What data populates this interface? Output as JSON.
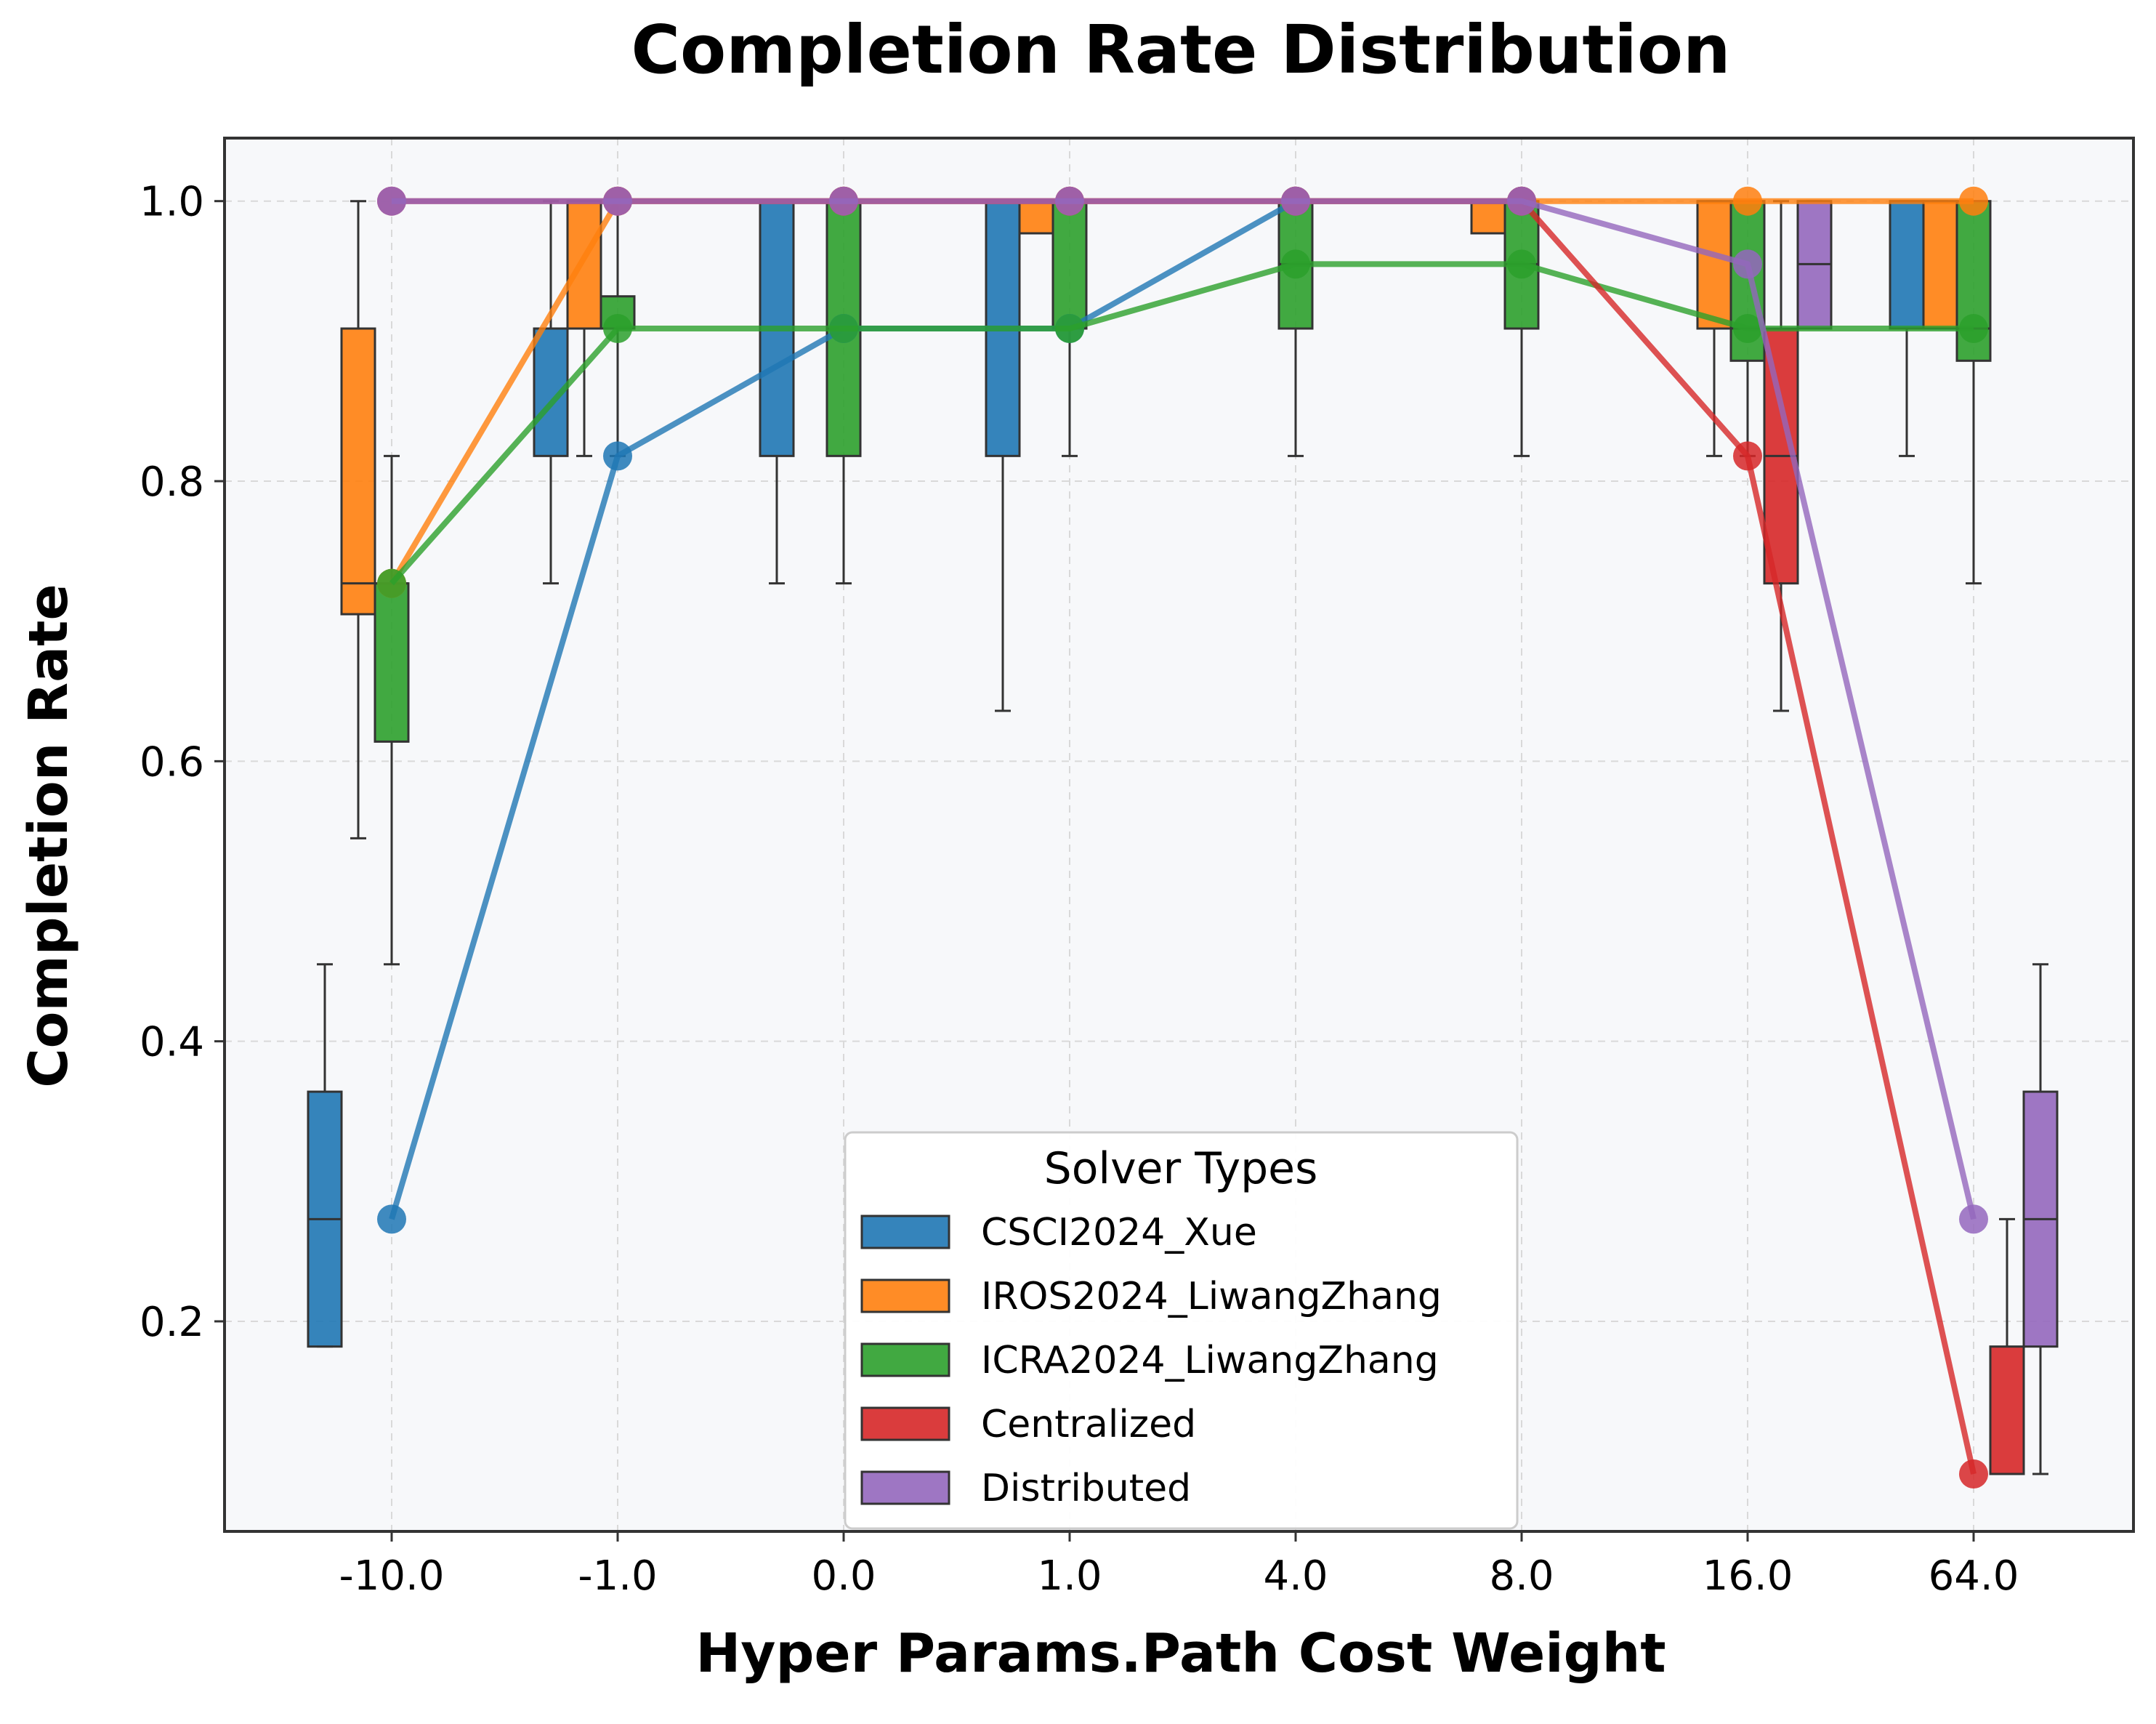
{
  "chart_data": {
    "type": "box",
    "title": "Completion Rate Distribution",
    "xlabel": "Hyper Params.Path Cost Weight",
    "ylabel": "Completion Rate",
    "categories": [
      "-10.0",
      "-1.0",
      "0.0",
      "1.0",
      "4.0",
      "8.0",
      "16.0",
      "64.0"
    ],
    "ylim": [
      0.05,
      1.045
    ],
    "yticks": [
      0.2,
      0.4,
      0.6,
      0.8,
      1.0
    ],
    "ytick_labels": [
      "0.2",
      "0.4",
      "0.6",
      "0.8",
      "1.0"
    ],
    "grid": true,
    "legend": {
      "title": "Solver Types",
      "placement": "lower center"
    },
    "series": [
      {
        "name": "CSCI2024_Xue",
        "color": "#1f77b4",
        "boxes": [
          {
            "whisker_low": 0.182,
            "q1": 0.182,
            "median": 0.273,
            "q3": 0.364,
            "whisker_high": 0.455
          },
          {
            "whisker_low": 0.727,
            "q1": 0.818,
            "median": 0.909,
            "q3": 0.909,
            "whisker_high": 1.0
          },
          {
            "whisker_low": 0.727,
            "q1": 0.818,
            "median": 1.0,
            "q3": 1.0,
            "whisker_high": 1.0
          },
          {
            "whisker_low": 0.636,
            "q1": 0.818,
            "median": 1.0,
            "q3": 1.0,
            "whisker_high": 1.0
          },
          null,
          null,
          null,
          {
            "whisker_low": 0.818,
            "q1": 0.909,
            "median": 1.0,
            "q3": 1.0,
            "whisker_high": 1.0
          }
        ],
        "line_values": [
          0.273,
          0.818,
          0.909,
          0.909,
          1.0,
          1.0,
          null,
          null
        ]
      },
      {
        "name": "IROS2024_LiwangZhang",
        "color": "#ff7f0e",
        "boxes": [
          {
            "whisker_low": 0.545,
            "q1": 0.705,
            "median": 0.727,
            "q3": 0.909,
            "whisker_high": 1.0
          },
          {
            "whisker_low": 0.818,
            "q1": 0.909,
            "median": 1.0,
            "q3": 1.0,
            "whisker_high": 1.0
          },
          null,
          {
            "whisker_low": 0.977,
            "q1": 0.977,
            "median": 1.0,
            "q3": 1.0,
            "whisker_high": 1.0
          },
          null,
          {
            "whisker_low": 0.977,
            "q1": 0.977,
            "median": 1.0,
            "q3": 1.0,
            "whisker_high": 1.0
          },
          {
            "whisker_low": 0.818,
            "q1": 0.909,
            "median": 1.0,
            "q3": 1.0,
            "whisker_high": 1.0
          },
          {
            "whisker_low": 0.909,
            "q1": 0.909,
            "median": 1.0,
            "q3": 1.0,
            "whisker_high": 1.0
          }
        ],
        "line_values": [
          0.727,
          1.0,
          1.0,
          1.0,
          1.0,
          1.0,
          1.0,
          1.0
        ]
      },
      {
        "name": "ICRA2024_LiwangZhang",
        "color": "#2ca02c",
        "boxes": [
          {
            "whisker_low": 0.455,
            "q1": 0.614,
            "median": 0.727,
            "q3": 0.727,
            "whisker_high": 0.818
          },
          {
            "whisker_low": 0.818,
            "q1": 0.909,
            "median": 0.909,
            "q3": 0.932,
            "whisker_high": 1.0
          },
          {
            "whisker_low": 0.727,
            "q1": 0.818,
            "median": 0.909,
            "q3": 1.0,
            "whisker_high": 1.0
          },
          {
            "whisker_low": 0.818,
            "q1": 0.909,
            "median": 0.909,
            "q3": 1.0,
            "whisker_high": 1.0
          },
          {
            "whisker_low": 0.818,
            "q1": 0.909,
            "median": 0.955,
            "q3": 1.0,
            "whisker_high": 1.0
          },
          {
            "whisker_low": 0.818,
            "q1": 0.909,
            "median": 0.955,
            "q3": 1.0,
            "whisker_high": 1.0
          },
          {
            "whisker_low": 0.818,
            "q1": 0.886,
            "median": 0.909,
            "q3": 1.0,
            "whisker_high": 1.0
          },
          {
            "whisker_low": 0.727,
            "q1": 0.886,
            "median": 0.909,
            "q3": 1.0,
            "whisker_high": 1.0
          }
        ],
        "line_values": [
          0.727,
          0.909,
          0.909,
          0.909,
          0.955,
          0.955,
          0.909,
          0.909
        ]
      },
      {
        "name": "Centralized",
        "color": "#d62728",
        "boxes": [
          null,
          null,
          null,
          null,
          null,
          null,
          {
            "whisker_low": 0.636,
            "q1": 0.727,
            "median": 0.818,
            "q3": 0.909,
            "whisker_high": 1.0
          },
          {
            "whisker_low": 0.091,
            "q1": 0.091,
            "median": 0.091,
            "q3": 0.182,
            "whisker_high": 0.273
          }
        ],
        "line_values": [
          1.0,
          1.0,
          1.0,
          1.0,
          1.0,
          1.0,
          0.818,
          0.091
        ]
      },
      {
        "name": "Distributed",
        "color": "#9467bd",
        "boxes": [
          null,
          null,
          null,
          null,
          null,
          null,
          {
            "whisker_low": 0.909,
            "q1": 0.909,
            "median": 0.955,
            "q3": 1.0,
            "whisker_high": 1.0
          },
          {
            "whisker_low": 0.091,
            "q1": 0.182,
            "median": 0.273,
            "q3": 0.364,
            "whisker_high": 0.455
          }
        ],
        "line_values": [
          1.0,
          1.0,
          1.0,
          1.0,
          1.0,
          1.0,
          0.955,
          0.273
        ]
      }
    ]
  }
}
